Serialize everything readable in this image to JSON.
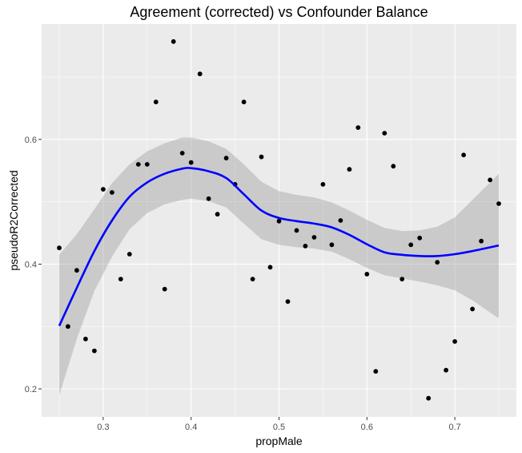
{
  "chart_data": {
    "type": "scatter",
    "title": "Agreement (corrected) vs Confounder Balance",
    "xlabel": "propMale",
    "ylabel": "pseudoR2Corrected",
    "xlim": [
      0.23,
      0.77
    ],
    "ylim": [
      0.155,
      0.785
    ],
    "x_ticks": [
      0.3,
      0.4,
      0.5,
      0.6,
      0.7
    ],
    "x_tick_labels": [
      "0.3",
      "0.4",
      "0.5",
      "0.6",
      "0.7"
    ],
    "y_ticks": [
      0.2,
      0.4,
      0.6
    ],
    "y_tick_labels": [
      "0.2",
      "0.4",
      "0.6"
    ],
    "grid": true,
    "colors": {
      "panel": "#ebebeb",
      "grid": "#ffffff",
      "points": "#000000",
      "smooth_line": "#0000ff",
      "confidence_band": "#999999"
    },
    "points": {
      "x": [
        0.25,
        0.26,
        0.27,
        0.28,
        0.29,
        0.3,
        0.31,
        0.32,
        0.33,
        0.34,
        0.35,
        0.36,
        0.37,
        0.38,
        0.39,
        0.4,
        0.41,
        0.42,
        0.43,
        0.44,
        0.45,
        0.46,
        0.47,
        0.48,
        0.49,
        0.5,
        0.51,
        0.52,
        0.53,
        0.54,
        0.55,
        0.56,
        0.57,
        0.58,
        0.59,
        0.6,
        0.61,
        0.62,
        0.63,
        0.64,
        0.65,
        0.66,
        0.67,
        0.68,
        0.69,
        0.7,
        0.71,
        0.72,
        0.73,
        0.74,
        0.75
      ],
      "y": [
        0.426,
        0.3,
        0.39,
        0.28,
        0.261,
        0.52,
        0.515,
        0.376,
        0.416,
        0.56,
        0.56,
        0.66,
        0.36,
        0.757,
        0.578,
        0.563,
        0.705,
        0.505,
        0.48,
        0.57,
        0.528,
        0.66,
        0.376,
        0.572,
        0.395,
        0.469,
        0.34,
        0.454,
        0.429,
        0.443,
        0.528,
        0.431,
        0.47,
        0.552,
        0.619,
        0.384,
        0.228,
        0.61,
        0.557,
        0.376,
        0.431,
        0.442,
        0.185,
        0.403,
        0.23,
        0.276,
        0.575,
        0.328,
        0.437,
        0.535,
        0.497
      ]
    },
    "smooth": {
      "method": "loess",
      "x": [
        0.25,
        0.27,
        0.29,
        0.31,
        0.33,
        0.35,
        0.37,
        0.39,
        0.4,
        0.42,
        0.44,
        0.46,
        0.48,
        0.5,
        0.52,
        0.54,
        0.56,
        0.58,
        0.6,
        0.62,
        0.64,
        0.66,
        0.68,
        0.7,
        0.72,
        0.75
      ],
      "y": [
        0.301,
        0.362,
        0.421,
        0.47,
        0.508,
        0.531,
        0.545,
        0.553,
        0.554,
        0.549,
        0.538,
        0.512,
        0.486,
        0.474,
        0.469,
        0.465,
        0.459,
        0.447,
        0.432,
        0.419,
        0.415,
        0.413,
        0.413,
        0.416,
        0.421,
        0.43
      ],
      "lower": [
        0.19,
        0.28,
        0.357,
        0.412,
        0.456,
        0.482,
        0.496,
        0.503,
        0.505,
        0.501,
        0.491,
        0.465,
        0.44,
        0.431,
        0.427,
        0.425,
        0.42,
        0.408,
        0.394,
        0.382,
        0.377,
        0.372,
        0.366,
        0.358,
        0.342,
        0.313
      ],
      "upper": [
        0.415,
        0.448,
        0.488,
        0.53,
        0.56,
        0.581,
        0.594,
        0.603,
        0.603,
        0.597,
        0.585,
        0.56,
        0.532,
        0.517,
        0.511,
        0.507,
        0.499,
        0.486,
        0.471,
        0.458,
        0.453,
        0.454,
        0.46,
        0.475,
        0.503,
        0.545
      ]
    }
  }
}
